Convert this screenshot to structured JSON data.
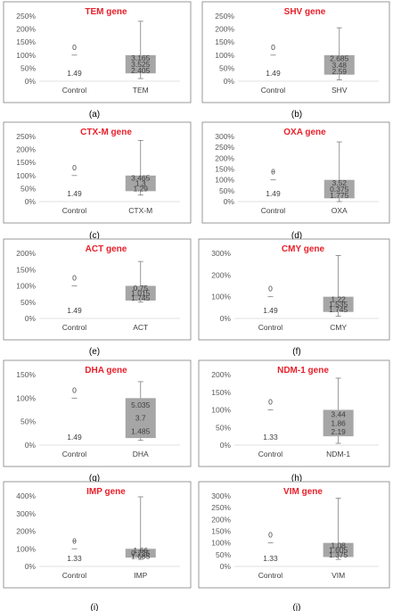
{
  "colors": {
    "title": "#e8202a",
    "box": "#a6a6a6",
    "frame": "#7f7f7f",
    "text": "#404040"
  },
  "chart_data": [
    {
      "type": "box",
      "title": "TEM gene",
      "caption": "(a)",
      "categories": [
        "Control",
        "TEM"
      ],
      "yticks": [
        "0%",
        "50%",
        "100%",
        "150%",
        "200%",
        "250%"
      ],
      "ylim": [
        0,
        250
      ],
      "control": {
        "median": 100,
        "labels": [
          "0",
          "1.49"
        ]
      },
      "box": {
        "q1": 30,
        "q3": 100,
        "min": 10,
        "max": 230,
        "labels": [
          "3.165",
          "3.525",
          "2.405"
        ]
      }
    },
    {
      "type": "box",
      "title": "SHV gene",
      "caption": "(b)",
      "categories": [
        "Control",
        "SHV"
      ],
      "yticks": [
        "0%",
        "50%",
        "100%",
        "150%",
        "200%",
        "250%"
      ],
      "ylim": [
        0,
        250
      ],
      "control": {
        "median": 100,
        "labels": [
          "0",
          "1.49"
        ]
      },
      "box": {
        "q1": 25,
        "q3": 100,
        "min": 5,
        "max": 205,
        "labels": [
          "2.685",
          "3.48",
          "2.59"
        ]
      }
    },
    {
      "type": "box",
      "title": "CTX-M gene",
      "caption": "(c)",
      "categories": [
        "Control",
        "CTX-M"
      ],
      "yticks": [
        "0%",
        "50%",
        "100%",
        "150%",
        "200%",
        "250%"
      ],
      "ylim": [
        0,
        250
      ],
      "control": {
        "median": 100,
        "labels": [
          "0",
          "1.49"
        ]
      },
      "box": {
        "q1": 40,
        "q3": 100,
        "min": 25,
        "max": 235,
        "labels": [
          "3.465",
          "1.3",
          "1.29"
        ]
      }
    },
    {
      "type": "box",
      "title": "OXA gene",
      "caption": "(d)",
      "categories": [
        "Control",
        "OXA"
      ],
      "yticks": [
        "0%",
        "50%",
        "100%",
        "150%",
        "200%",
        "250%",
        "300%"
      ],
      "ylim": [
        0,
        300
      ],
      "control": {
        "median": 100,
        "labels": [
          "θ",
          "1.49"
        ]
      },
      "box": {
        "q1": 15,
        "q3": 100,
        "min": 0,
        "max": 275,
        "labels": [
          "3.52",
          "0.375",
          "1.775"
        ]
      }
    },
    {
      "type": "box",
      "title": "ACT gene",
      "caption": "(e)",
      "categories": [
        "Control",
        "ACT"
      ],
      "yticks": [
        "0%",
        "50%",
        "100%",
        "150%",
        "200%"
      ],
      "ylim": [
        0,
        200
      ],
      "control": {
        "median": 100,
        "labels": [
          "0",
          "1.49"
        ]
      },
      "box": {
        "q1": 55,
        "q3": 100,
        "min": 50,
        "max": 175,
        "labels": [
          "0.75",
          "1.015",
          "1.745"
        ]
      }
    },
    {
      "type": "box",
      "title": "CMY gene",
      "caption": "(f)",
      "categories": [
        "Control",
        "CMY"
      ],
      "yticks": [
        "0%",
        "100%",
        "200%",
        "300%"
      ],
      "ylim": [
        0,
        300
      ],
      "control": {
        "median": 100,
        "labels": [
          "0",
          "1.49"
        ]
      },
      "box": {
        "q1": 30,
        "q3": 100,
        "min": 10,
        "max": 290,
        "labels": [
          "1.22",
          "1.535",
          "1.745"
        ]
      }
    },
    {
      "type": "box",
      "title": "DHA gene",
      "caption": "(g)",
      "categories": [
        "Control",
        "DHA"
      ],
      "yticks": [
        "0%",
        "50%",
        "100%",
        "150%"
      ],
      "ylim": [
        0,
        150
      ],
      "control": {
        "median": 100,
        "labels": [
          "0",
          "1.49"
        ]
      },
      "box": {
        "q1": 15,
        "q3": 100,
        "min": 10,
        "max": 135,
        "labels": [
          "5.035",
          "3.7",
          "1.485"
        ]
      }
    },
    {
      "type": "box",
      "title": "NDM-1 gene",
      "caption": "(h)",
      "categories": [
        "Control",
        "NDM-1"
      ],
      "yticks": [
        "0%",
        "50%",
        "100%",
        "150%",
        "200%"
      ],
      "ylim": [
        0,
        200
      ],
      "control": {
        "median": 100,
        "labels": [
          "0",
          "1.33"
        ]
      },
      "box": {
        "q1": 25,
        "q3": 100,
        "min": 5,
        "max": 190,
        "labels": [
          "3.44",
          "1.86",
          "2.19"
        ]
      }
    },
    {
      "type": "box",
      "title": "IMP gene",
      "caption": "(i)",
      "categories": [
        "Control",
        "IMP"
      ],
      "yticks": [
        "0%",
        "100%",
        "200%",
        "300%",
        "400%"
      ],
      "ylim": [
        0,
        400
      ],
      "control": {
        "median": 100,
        "labels": [
          "θ",
          "1.33"
        ]
      },
      "box": {
        "q1": 50,
        "q3": 100,
        "min": 40,
        "max": 395,
        "labels": [
          "1.66",
          "0.725",
          "1.685"
        ]
      }
    },
    {
      "type": "box",
      "title": "VIM gene",
      "caption": "(j)",
      "categories": [
        "Control",
        "VIM"
      ],
      "yticks": [
        "0%",
        "50%",
        "100%",
        "150%",
        "200%",
        "250%",
        "300%"
      ],
      "ylim": [
        0,
        300
      ],
      "control": {
        "median": 100,
        "labels": [
          "0",
          "1.33"
        ]
      },
      "box": {
        "q1": 40,
        "q3": 100,
        "min": 30,
        "max": 290,
        "labels": [
          "1.08",
          "1.605",
          "1.375"
        ]
      }
    }
  ]
}
